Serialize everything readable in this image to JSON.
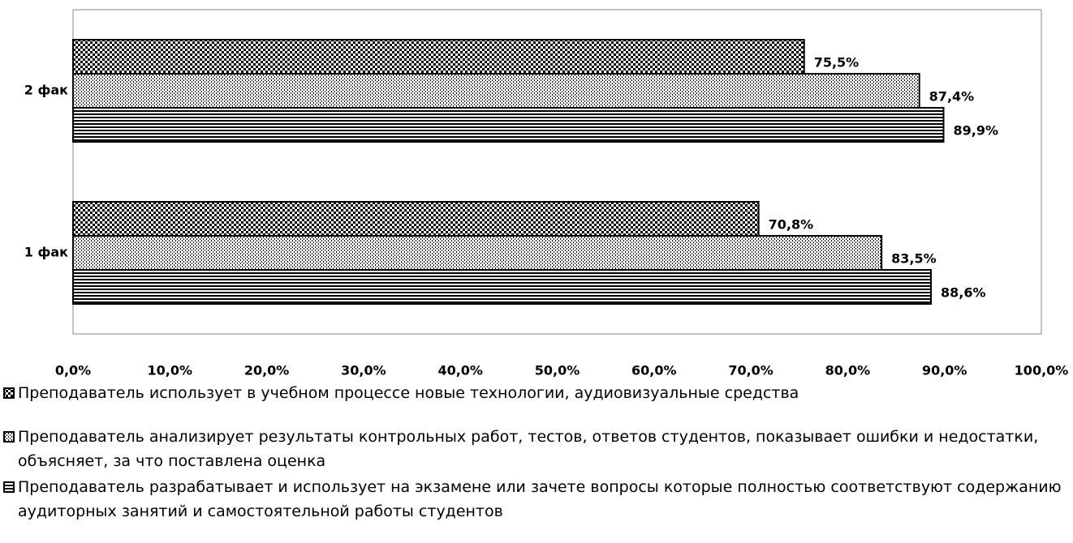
{
  "chart_data": {
    "type": "barh",
    "categories": [
      "1 фак",
      "2 фак"
    ],
    "series": [
      {
        "name": "Преподаватель использует в учебном процессе новые технологии, аудиовизуальные средства",
        "color": "#000000",
        "values": [
          70.8,
          75.5
        ],
        "value_labels": [
          "70,8%",
          "75,5%"
        ]
      },
      {
        "name": "Преподаватель анализирует результаты контрольных работ, тестов, ответов студентов, показывает ошибки и недостатки, объясняет, за что поставлена оценка",
        "color": "#000000",
        "values": [
          83.5,
          87.4
        ],
        "value_labels": [
          "83,5%",
          "87,4%"
        ]
      },
      {
        "name": "Преподаватель разрабатывает и использует на экзамене или зачете вопросы которые полностью соответствуют содержанию аудиторных занятий и самостоятельной работы студентов",
        "color": "#000000",
        "values": [
          88.6,
          89.9
        ],
        "value_labels": [
          "88,6%",
          "89,9%"
        ]
      }
    ],
    "xlim": [
      0,
      100
    ],
    "xticks": [
      {
        "value": 0,
        "label": "0,0%"
      },
      {
        "value": 10,
        "label": "10,0%"
      },
      {
        "value": 20,
        "label": "20,0%"
      },
      {
        "value": 30,
        "label": "30,0%"
      },
      {
        "value": 40,
        "label": "40,0%"
      },
      {
        "value": 50,
        "label": "50,0%"
      },
      {
        "value": 60,
        "label": "60,0%"
      },
      {
        "value": 70,
        "label": "70,0%"
      },
      {
        "value": 80,
        "label": "80,0%"
      },
      {
        "value": 90,
        "label": "90,0%"
      },
      {
        "value": 100,
        "label": "100,0%"
      }
    ],
    "legend": "bottom"
  }
}
